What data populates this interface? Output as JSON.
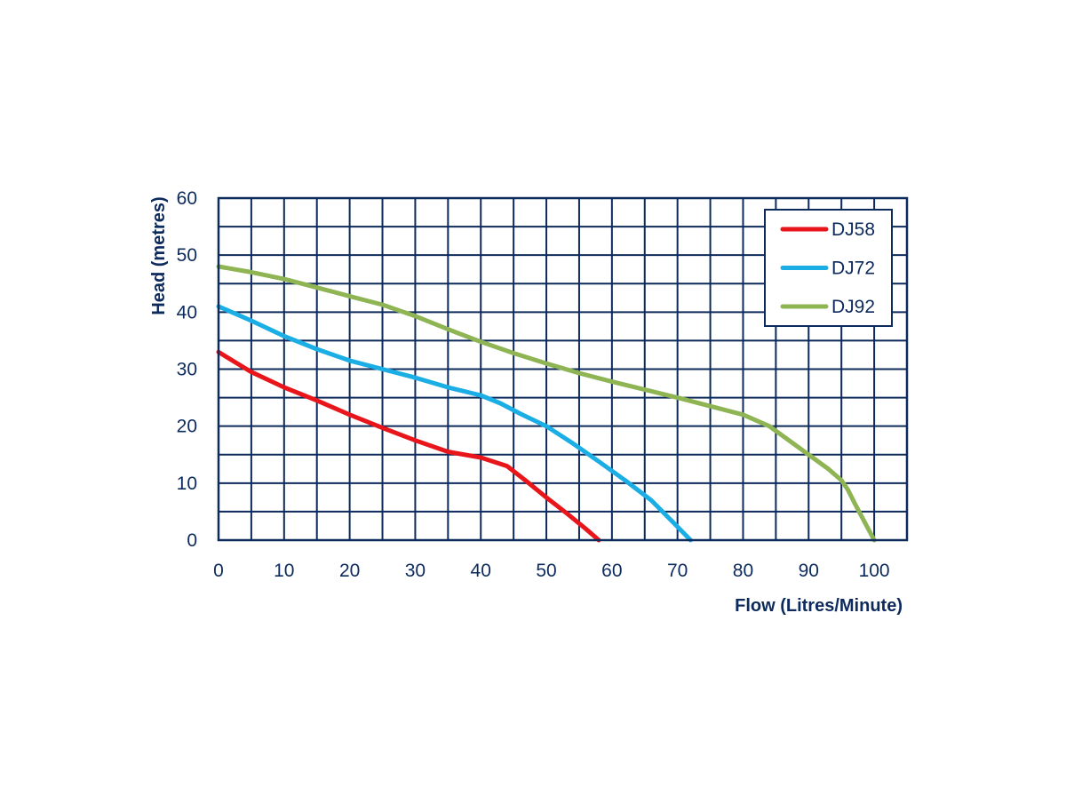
{
  "chart_data": {
    "type": "line",
    "title": "",
    "xlabel": "Flow (Litres/Minute)",
    "ylabel": "Head (metres)",
    "xlim": [
      0,
      105
    ],
    "ylim": [
      0,
      60
    ],
    "x_ticks": [
      0,
      10,
      20,
      30,
      40,
      50,
      60,
      70,
      80,
      90,
      100
    ],
    "y_ticks": [
      0,
      10,
      20,
      30,
      40,
      50,
      60
    ],
    "grid": true,
    "grid_x_step": 5,
    "grid_y_step": 5,
    "legend_position": "top-right",
    "colors": {
      "axis": "#0d2a5c",
      "grid": "#0d2a5c"
    },
    "series": [
      {
        "name": "DJ58",
        "color": "#e8151b",
        "x": [
          0,
          5,
          10,
          15,
          20,
          25,
          30,
          35,
          40,
          44,
          47,
          50,
          53,
          56,
          58
        ],
        "y": [
          33,
          29.5,
          26.8,
          24.5,
          22,
          19.7,
          17.5,
          15.5,
          14.5,
          13,
          10.3,
          7.5,
          4.8,
          2,
          0
        ]
      },
      {
        "name": "DJ72",
        "color": "#1aaee5",
        "x": [
          0,
          5,
          10,
          15,
          20,
          25,
          30,
          35,
          40,
          43,
          46,
          50,
          54,
          58,
          62,
          66,
          69,
          72
        ],
        "y": [
          41,
          38.5,
          35.8,
          33.5,
          31.5,
          30,
          28.5,
          26.8,
          25.4,
          24,
          22.2,
          20,
          17,
          13.8,
          10.5,
          7,
          3.5,
          0
        ]
      },
      {
        "name": "DJ92",
        "color": "#8eb454",
        "x": [
          0,
          5,
          10,
          15,
          20,
          25,
          30,
          35,
          40,
          45,
          50,
          55,
          60,
          65,
          70,
          75,
          80,
          84,
          87,
          90,
          93,
          95,
          96,
          97,
          100
        ],
        "y": [
          48,
          47,
          45.8,
          44.3,
          42.8,
          41.3,
          39.3,
          37,
          34.8,
          32.8,
          31,
          29.3,
          27.8,
          26.4,
          25,
          23.5,
          22,
          20,
          17.5,
          15,
          12.5,
          10.5,
          8.8,
          6.5,
          0
        ]
      }
    ]
  }
}
